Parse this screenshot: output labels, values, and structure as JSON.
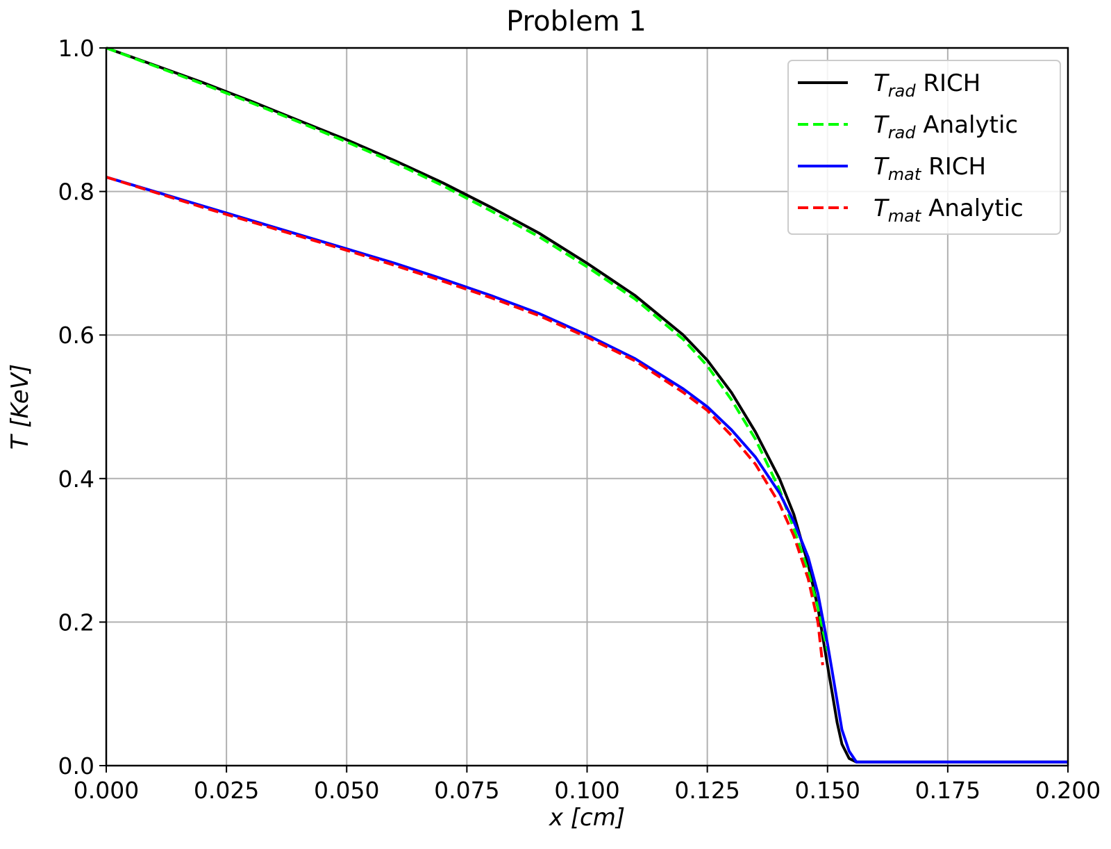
{
  "chart_data": {
    "type": "line",
    "title": "Problem 1",
    "xlabel": {
      "var": "x",
      "unit": "[cm]"
    },
    "ylabel": {
      "var": "T",
      "unit": "[KeV]"
    },
    "xlim": [
      0.0,
      0.2
    ],
    "ylim": [
      0.0,
      1.0
    ],
    "xticks": [
      "0.000",
      "0.025",
      "0.050",
      "0.075",
      "0.100",
      "0.125",
      "0.150",
      "0.175",
      "0.200"
    ],
    "yticks": [
      "0.0",
      "0.2",
      "0.4",
      "0.6",
      "0.8",
      "1.0"
    ],
    "grid": true,
    "legend_position": "top-right",
    "series": [
      {
        "name": "T_rad RICH",
        "symbol": "T",
        "sub": "rad",
        "suffix": "RICH",
        "color": "#000000",
        "dash": false,
        "x": [
          0.0,
          0.01,
          0.02,
          0.03,
          0.04,
          0.05,
          0.06,
          0.07,
          0.08,
          0.09,
          0.1,
          0.11,
          0.12,
          0.125,
          0.13,
          0.135,
          0.14,
          0.143,
          0.146,
          0.148,
          0.149,
          0.15,
          0.151,
          0.152,
          0.153,
          0.1545,
          0.156,
          0.17,
          0.2
        ],
        "y": [
          1.0,
          0.976,
          0.952,
          0.926,
          0.899,
          0.872,
          0.843,
          0.812,
          0.778,
          0.742,
          0.7,
          0.655,
          0.6,
          0.565,
          0.52,
          0.465,
          0.4,
          0.35,
          0.28,
          0.22,
          0.18,
          0.14,
          0.1,
          0.06,
          0.03,
          0.01,
          0.005,
          0.005,
          0.005
        ]
      },
      {
        "name": "T_rad Analytic",
        "symbol": "T",
        "sub": "rad",
        "suffix": "Analytic",
        "color": "#00ff00",
        "dash": true,
        "x": [
          0.0,
          0.01,
          0.02,
          0.03,
          0.04,
          0.05,
          0.06,
          0.07,
          0.08,
          0.09,
          0.1,
          0.11,
          0.12,
          0.125,
          0.13,
          0.135,
          0.14,
          0.143,
          0.146,
          0.148,
          0.15
        ],
        "y": [
          1.0,
          0.975,
          0.95,
          0.924,
          0.897,
          0.869,
          0.84,
          0.808,
          0.773,
          0.737,
          0.695,
          0.65,
          0.594,
          0.557,
          0.51,
          0.455,
          0.385,
          0.33,
          0.27,
          0.22,
          0.16
        ]
      },
      {
        "name": "T_mat RICH",
        "symbol": "T",
        "sub": "mat",
        "suffix": "RICH",
        "color": "#0000ff",
        "dash": false,
        "x": [
          0.0,
          0.01,
          0.02,
          0.03,
          0.04,
          0.05,
          0.06,
          0.07,
          0.08,
          0.09,
          0.1,
          0.11,
          0.12,
          0.125,
          0.13,
          0.135,
          0.14,
          0.143,
          0.146,
          0.148,
          0.149,
          0.15,
          0.151,
          0.152,
          0.153,
          0.1545,
          0.156,
          0.17,
          0.2
        ],
        "y": [
          0.82,
          0.8,
          0.78,
          0.76,
          0.74,
          0.72,
          0.7,
          0.678,
          0.655,
          0.63,
          0.6,
          0.567,
          0.525,
          0.5,
          0.468,
          0.43,
          0.38,
          0.34,
          0.29,
          0.24,
          0.205,
          0.17,
          0.13,
          0.09,
          0.05,
          0.02,
          0.005,
          0.005,
          0.005
        ]
      },
      {
        "name": "T_mat Analytic",
        "symbol": "T",
        "sub": "mat",
        "suffix": "Analytic",
        "color": "#ff0000",
        "dash": true,
        "x": [
          0.0,
          0.01,
          0.02,
          0.03,
          0.04,
          0.05,
          0.06,
          0.07,
          0.08,
          0.09,
          0.1,
          0.11,
          0.12,
          0.125,
          0.13,
          0.135,
          0.14,
          0.143,
          0.146,
          0.148,
          0.149
        ],
        "y": [
          0.82,
          0.799,
          0.778,
          0.758,
          0.738,
          0.718,
          0.697,
          0.675,
          0.652,
          0.627,
          0.597,
          0.564,
          0.52,
          0.495,
          0.46,
          0.42,
          0.365,
          0.32,
          0.26,
          0.2,
          0.14
        ]
      }
    ]
  }
}
